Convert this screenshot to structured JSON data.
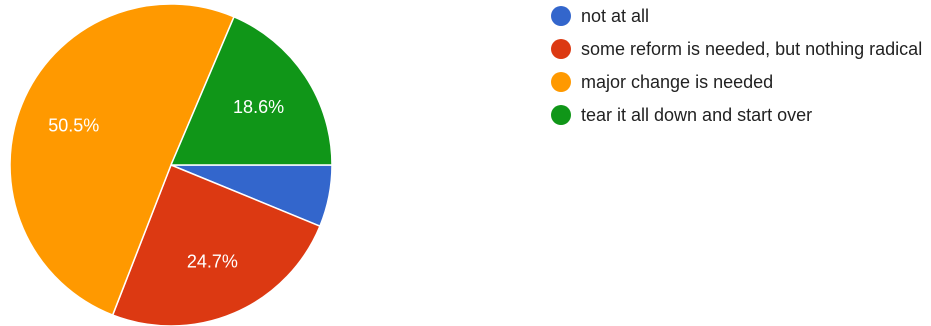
{
  "chart_data": {
    "type": "pie",
    "title": "",
    "start_angle_deg": 0,
    "direction": "clockwise",
    "slices": [
      {
        "label": "not at all",
        "value": 6.2,
        "color": "#3366cc",
        "show_label": false,
        "display": ""
      },
      {
        "label": "some reform is needed, but nothing radical",
        "value": 24.7,
        "color": "#dc3912",
        "show_label": true,
        "display": "24.7%"
      },
      {
        "label": "major change is needed",
        "value": 50.5,
        "color": "#ff9900",
        "show_label": true,
        "display": "50.5%"
      },
      {
        "label": "tear it all down and start over",
        "value": 18.6,
        "color": "#109618",
        "show_label": true,
        "display": "18.6%"
      }
    ],
    "legend": {
      "position": "right",
      "items": [
        {
          "label": "not at all",
          "color": "#3366cc"
        },
        {
          "label": "some reform is needed, but nothing radical",
          "color": "#dc3912"
        },
        {
          "label": "major change is needed",
          "color": "#ff9900"
        },
        {
          "label": "tear it all down and start over",
          "color": "#109618"
        }
      ]
    }
  }
}
